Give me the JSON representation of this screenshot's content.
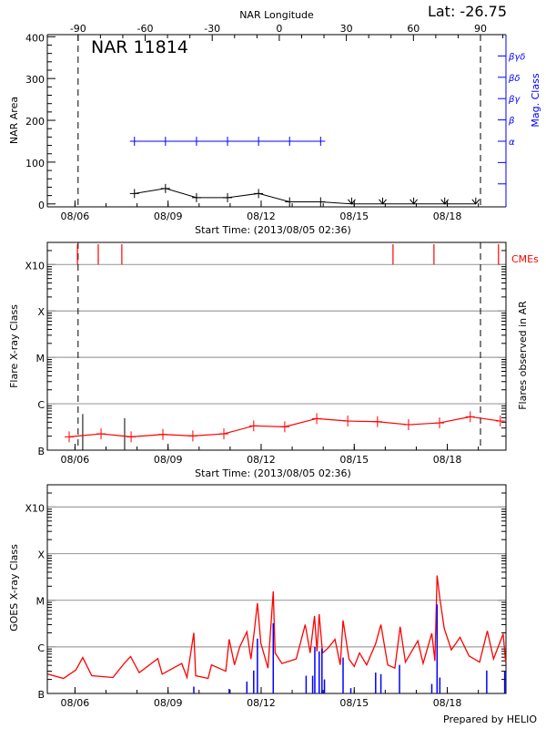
{
  "header": {
    "lat_label": "Lat: -26.75",
    "credit": "Prepared by HELIO"
  },
  "colors": {
    "area": "#000000",
    "mag_class": "#0000ff",
    "cme": "#ff0000",
    "flare_background": "#ff0000",
    "goes_long": "#ff0000",
    "goes_short": "#0000ff",
    "grid": "#a0a0a0"
  },
  "chart_data": [
    {
      "type": "line",
      "title": "NAR 11814",
      "top_axis_label": "NAR Longitude",
      "xlabel": "Start Time: (2013/08/05 02:36)",
      "ylabel": "NAR Area",
      "y2label": "Mag. Class",
      "xlim": [
        "08/05 02:36",
        "08/19 21:22"
      ],
      "ylim": [
        0,
        400
      ],
      "yticks": [
        {
          "value": 0,
          "label": "0"
        },
        {
          "value": 100,
          "label": "100"
        },
        {
          "value": 200,
          "label": "200"
        },
        {
          "value": 300,
          "label": "300"
        },
        {
          "value": 400,
          "label": "400"
        }
      ],
      "xticks": [
        {
          "t": "08/06 00:00",
          "label": "08/06"
        },
        {
          "t": "08/09 00:00",
          "label": "08/09"
        },
        {
          "t": "08/12 00:00",
          "label": "08/12"
        },
        {
          "t": "08/15 00:00",
          "label": "08/15"
        },
        {
          "t": "08/18 00:00",
          "label": "08/18"
        }
      ],
      "longitude_ticks": [
        {
          "value": -90,
          "label": "-90"
        },
        {
          "value": -60,
          "label": "-60"
        },
        {
          "value": -30,
          "label": "-30"
        },
        {
          "value": 0,
          "label": "0"
        },
        {
          "value": 30,
          "label": "30"
        },
        {
          "value": 60,
          "label": "60"
        },
        {
          "value": 90,
          "label": "90"
        }
      ],
      "limb_crossings": [
        "08/06 02:24",
        "08/19 01:40"
      ],
      "mag_classes": [
        {
          "rank": 1,
          "label": "α"
        },
        {
          "rank": 2,
          "label": "β"
        },
        {
          "rank": 3,
          "label": "βγ"
        },
        {
          "rank": 4,
          "label": "βδ"
        },
        {
          "rank": 5,
          "label": "βγδ"
        }
      ],
      "area_series": [
        {
          "t": "08/07 22:00",
          "area": 25,
          "marker": "cross"
        },
        {
          "t": "08/08 22:00",
          "area": 37,
          "marker": "cross"
        },
        {
          "t": "08/09 22:00",
          "area": 15,
          "marker": "cross"
        },
        {
          "t": "08/10 22:00",
          "area": 15,
          "marker": "cross"
        },
        {
          "t": "08/11 22:00",
          "area": 25,
          "marker": "cross"
        },
        {
          "t": "08/12 22:00",
          "area": 5,
          "marker": "cross"
        },
        {
          "t": "08/13 22:00",
          "area": 5,
          "marker": "cross"
        },
        {
          "t": "08/14 22:00",
          "area": 0,
          "marker": "arrow"
        },
        {
          "t": "08/15 22:00",
          "area": 0,
          "marker": "arrow"
        },
        {
          "t": "08/16 22:00",
          "area": 0,
          "marker": "arrow"
        },
        {
          "t": "08/17 22:00",
          "area": 0,
          "marker": "arrow"
        },
        {
          "t": "08/18 22:00",
          "area": 0,
          "marker": "arrow"
        }
      ],
      "mag_series": [
        {
          "t": "08/07 22:00",
          "class": "α"
        },
        {
          "t": "08/08 22:00",
          "class": "α"
        },
        {
          "t": "08/09 22:00",
          "class": "α"
        },
        {
          "t": "08/10 22:00",
          "class": "α"
        },
        {
          "t": "08/11 22:00",
          "class": "α"
        },
        {
          "t": "08/12 22:00",
          "class": "α"
        },
        {
          "t": "08/13 22:00",
          "class": "α"
        }
      ]
    },
    {
      "type": "line",
      "xlabel": "Start Time: (2013/08/05 02:36)",
      "ylabel": "Flare X-ray Class",
      "y2label": "Flares observed in AR",
      "cme_label": "CMEs",
      "xlim": [
        "08/05 02:36",
        "08/19 21:22"
      ],
      "ylim": [
        1e-07,
        0.003
      ],
      "yscale": "log",
      "grid": true,
      "yticks": [
        {
          "value": 1e-07,
          "label": "B"
        },
        {
          "value": 1e-06,
          "label": "C"
        },
        {
          "value": 1e-05,
          "label": "M"
        },
        {
          "value": 0.0001,
          "label": "X"
        },
        {
          "value": 0.001,
          "label": "X10"
        }
      ],
      "xticks": [
        {
          "t": "08/06 00:00",
          "label": "08/06"
        },
        {
          "t": "08/09 00:00",
          "label": "08/09"
        },
        {
          "t": "08/12 00:00",
          "label": "08/12"
        },
        {
          "t": "08/15 00:00",
          "label": "08/15"
        },
        {
          "t": "08/18 00:00",
          "label": "08/18"
        }
      ],
      "limb_crossings": [
        "08/06 02:24",
        "08/19 01:40"
      ],
      "cmes": [
        "08/06 01:55",
        "08/06 18:00",
        "08/07 12:14",
        "08/16 06:00",
        "08/17 13:40",
        "08/19 15:36"
      ],
      "flares": [
        {
          "t": "08/06 06:00",
          "flux": 6e-07
        },
        {
          "t": "08/07 14:24",
          "flux": 4.9e-07
        }
      ],
      "background": [
        {
          "t": "08/05 19:30",
          "flux": 1.94e-07
        },
        {
          "t": "08/06 20:10",
          "flux": 2.25e-07
        },
        {
          "t": "08/07 19:25",
          "flux": 1.94e-07
        },
        {
          "t": "08/08 20:00",
          "flux": 2.18e-07
        },
        {
          "t": "08/09 19:10",
          "flux": 2.03e-07
        },
        {
          "t": "08/10 19:10",
          "flux": 2.25e-07
        },
        {
          "t": "08/11 18:15",
          "flux": 3.34e-07
        },
        {
          "t": "08/12 18:15",
          "flux": 3.19e-07
        },
        {
          "t": "08/13 19:00",
          "flux": 4.79e-07
        },
        {
          "t": "08/14 19:00",
          "flux": 4.24e-07
        },
        {
          "t": "08/15 18:00",
          "flux": 4.11e-07
        },
        {
          "t": "08/16 18:00",
          "flux": 3.54e-07
        },
        {
          "t": "08/17 18:00",
          "flux": 3.87e-07
        },
        {
          "t": "08/18 17:45",
          "flux": 5.25e-07
        },
        {
          "t": "08/19 17:00",
          "flux": 4.24e-07
        }
      ]
    },
    {
      "type": "line",
      "ylabel": "GOES X-ray Class",
      "xlim": [
        "08/05 02:36",
        "08/19 21:22"
      ],
      "ylim": [
        1e-07,
        0.003
      ],
      "yscale": "log",
      "grid": true,
      "yticks": [
        {
          "value": 1e-07,
          "label": "B"
        },
        {
          "value": 1e-06,
          "label": "C"
        },
        {
          "value": 1e-05,
          "label": "M"
        },
        {
          "value": 0.0001,
          "label": "X"
        },
        {
          "value": 0.001,
          "label": "X10"
        }
      ],
      "xticks": [
        {
          "t": "08/06 00:00",
          "label": "08/06"
        },
        {
          "t": "08/09 00:00",
          "label": "08/09"
        },
        {
          "t": "08/12 00:00",
          "label": "08/12"
        },
        {
          "t": "08/15 00:00",
          "label": "08/15"
        },
        {
          "t": "08/18 00:00",
          "label": "08/18"
        }
      ],
      "long_channel": [
        {
          "t": "08/05 02:53",
          "flux": 2.6e-07
        },
        {
          "t": "08/05 15:07",
          "flux": 2.1e-07
        },
        {
          "t": "08/06 00:43",
          "flux": 3.2e-07
        },
        {
          "t": "08/06 06:00",
          "flux": 5.9e-07
        },
        {
          "t": "08/06 13:00",
          "flux": 2.4e-07
        },
        {
          "t": "08/07 05:17",
          "flux": 2.2e-07
        },
        {
          "t": "08/07 14:53",
          "flux": 4.7e-07
        },
        {
          "t": "08/07 19:00",
          "flux": 6.2e-07
        },
        {
          "t": "08/08 01:41",
          "flux": 2.8e-07
        },
        {
          "t": "08/08 16:05",
          "flux": 5.6e-07
        },
        {
          "t": "08/08 19:26",
          "flux": 2.6e-07
        },
        {
          "t": "08/09 10:34",
          "flux": 4.4e-07
        },
        {
          "t": "08/09 14:38",
          "flux": 2.2e-07
        },
        {
          "t": "08/09 19:55",
          "flux": 2e-06
        },
        {
          "t": "08/09 21:22",
          "flux": 2.4e-07
        },
        {
          "t": "08/10 06:58",
          "flux": 2.1e-07
        },
        {
          "t": "08/10 09:36",
          "flux": 4.1e-07
        },
        {
          "t": "08/10 20:38",
          "flux": 3e-07
        },
        {
          "t": "08/10 23:17",
          "flux": 1.45e-06
        },
        {
          "t": "08/11 03:22",
          "flux": 4.1e-07
        },
        {
          "t": "08/11 07:26",
          "flux": 1e-06
        },
        {
          "t": "08/11 12:58",
          "flux": 2.1e-06
        },
        {
          "t": "08/11 16:05",
          "flux": 5.5e-07
        },
        {
          "t": "08/11 18:43",
          "flux": 2.2e-06
        },
        {
          "t": "08/11 21:07",
          "flux": 8.7e-06
        },
        {
          "t": "08/11 23:46",
          "flux": 1.2e-06
        },
        {
          "t": "08/12 05:17",
          "flux": 3.5e-07
        },
        {
          "t": "08/12 09:22",
          "flux": 1.55e-05
        },
        {
          "t": "08/12 10:48",
          "flux": 7.4e-07
        },
        {
          "t": "08/12 16:05",
          "flux": 4.4e-07
        },
        {
          "t": "08/13 03:07",
          "flux": 5.5e-07
        },
        {
          "t": "08/13 10:05",
          "flux": 3e-06
        },
        {
          "t": "08/13 13:55",
          "flux": 7.4e-07
        },
        {
          "t": "08/13 17:17",
          "flux": 4.6e-06
        },
        {
          "t": "08/13 19:12",
          "flux": 8e-07
        },
        {
          "t": "08/13 20:53",
          "flux": 5e-06
        },
        {
          "t": "08/13 23:31",
          "flux": 7.4e-07
        },
        {
          "t": "08/14 03:36",
          "flux": 9.3e-07
        },
        {
          "t": "08/14 09:07",
          "flux": 1.45e-06
        },
        {
          "t": "08/14 13:12",
          "flux": 4.1e-07
        },
        {
          "t": "08/14 15:22",
          "flux": 3.7e-06
        },
        {
          "t": "08/14 19:55",
          "flux": 5.5e-07
        },
        {
          "t": "08/15 00:00",
          "flux": 3.8e-07
        },
        {
          "t": "08/15 04:05",
          "flux": 7.4e-07
        },
        {
          "t": "08/15 09:36",
          "flux": 4.1e-07
        },
        {
          "t": "08/15 16:34",
          "flux": 1.17e-06
        },
        {
          "t": "08/15 20:38",
          "flux": 3e-06
        },
        {
          "t": "08/16 01:55",
          "flux": 4.1e-07
        },
        {
          "t": "08/16 07:26",
          "flux": 3.5e-07
        },
        {
          "t": "08/16 11:31",
          "flux": 2.7e-06
        },
        {
          "t": "08/16 15:36",
          "flux": 4.7e-07
        },
        {
          "t": "08/17 01:12",
          "flux": 1.35e-06
        },
        {
          "t": "08/17 05:17",
          "flux": 4.4e-07
        },
        {
          "t": "08/17 12:00",
          "flux": 1.96e-06
        },
        {
          "t": "08/17 14:24",
          "flux": 5e-07
        },
        {
          "t": "08/17 16:05",
          "flux": 3.4e-05
        },
        {
          "t": "08/17 18:14",
          "flux": 1.1e-05
        },
        {
          "t": "08/17 21:36",
          "flux": 2.5e-06
        },
        {
          "t": "08/18 03:07",
          "flux": 8.6e-07
        },
        {
          "t": "08/18 09:50",
          "flux": 1.6e-06
        },
        {
          "t": "08/18 16:48",
          "flux": 6.4e-07
        },
        {
          "t": "08/19 00:58",
          "flux": 4.7e-07
        },
        {
          "t": "08/19 06:58",
          "flux": 2.2e-06
        },
        {
          "t": "08/19 11:46",
          "flux": 5.5e-07
        },
        {
          "t": "08/19 19:12",
          "flux": 1.9e-06
        },
        {
          "t": "08/19 21:07",
          "flux": 4.7e-07
        }
      ],
      "short_channel": [
        {
          "t": "08/09 19:55",
          "flux": 1.4e-07
        },
        {
          "t": "08/10 23:17",
          "flux": 1.25e-07
        },
        {
          "t": "08/11 12:58",
          "flux": 1.8e-07
        },
        {
          "t": "08/11 18:14",
          "flux": 3.1e-07
        },
        {
          "t": "08/11 21:07",
          "flux": 1.5e-06
        },
        {
          "t": "08/12 09:22",
          "flux": 3.2e-06
        },
        {
          "t": "08/13 10:48",
          "flux": 2.4e-07
        },
        {
          "t": "08/13 15:50",
          "flux": 2.4e-07
        },
        {
          "t": "08/13 17:31",
          "flux": 1e-06
        },
        {
          "t": "08/13 20:53",
          "flux": 8e-07
        },
        {
          "t": "08/13 23:02",
          "flux": 9.3e-07
        },
        {
          "t": "08/14 00:58",
          "flux": 2e-07
        },
        {
          "t": "08/14 15:22",
          "flux": 5.9e-07
        },
        {
          "t": "08/14 21:22",
          "flux": 1.3e-07
        },
        {
          "t": "08/15 16:34",
          "flux": 2.8e-07
        },
        {
          "t": "08/15 20:38",
          "flux": 2.6e-07
        },
        {
          "t": "08/16 11:02",
          "flux": 4.1e-07
        },
        {
          "t": "08/17 12:00",
          "flux": 1.6e-07
        },
        {
          "t": "08/17 16:05",
          "flux": 8.1e-06
        },
        {
          "t": "08/17 18:14",
          "flux": 2.2e-07
        },
        {
          "t": "08/19 06:29",
          "flux": 3.1e-07
        },
        {
          "t": "08/19 20:24",
          "flux": 3e-07
        }
      ]
    }
  ]
}
